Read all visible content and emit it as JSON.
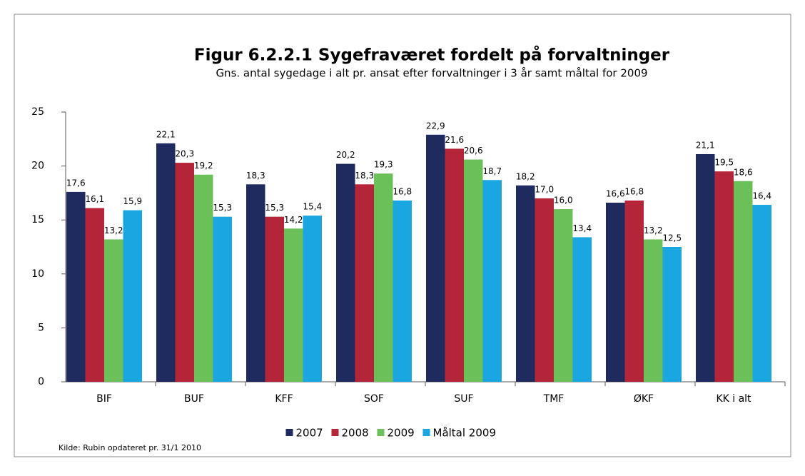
{
  "chart_data": {
    "type": "bar",
    "title": "Figur 6.2.2.1    Sygefraværet fordelt på forvaltninger",
    "subtitle": "Gns. antal sygedage i alt pr. ansat efter forvaltninger i 3 år samt måltal for 2009",
    "source": "Kilde: Rubin opdateret pr. 31/1 2010",
    "categories": [
      "BIF",
      "BUF",
      "KFF",
      "SOF",
      "SUF",
      "TMF",
      "ØKF",
      "KK i alt"
    ],
    "series": [
      {
        "name": "2007",
        "color": "#1f2a5e",
        "values": [
          17.6,
          22.1,
          18.3,
          20.2,
          22.9,
          18.2,
          16.6,
          21.1
        ],
        "value_labels": [
          "17,6",
          "22,1",
          "18,3",
          "20,2",
          "22,9",
          "18,2",
          "16,6",
          "21,1"
        ]
      },
      {
        "name": "2008",
        "color": "#b5253a",
        "values": [
          16.1,
          20.3,
          15.3,
          18.3,
          21.6,
          17.0,
          16.8,
          19.5
        ],
        "value_labels": [
          "16,1",
          "20,3",
          "15,3",
          "18,3",
          "21,6",
          "17,0",
          "16,8",
          "19,5"
        ]
      },
      {
        "name": "2009",
        "color": "#6cc05a",
        "values": [
          13.2,
          19.2,
          14.2,
          19.3,
          20.6,
          16.0,
          13.2,
          18.6
        ],
        "value_labels": [
          "13,2",
          "19,2",
          "14,2",
          "19,3",
          "20,6",
          "16,0",
          "13,2",
          "18,6"
        ]
      },
      {
        "name": "Måltal 2009",
        "color": "#1aa6e0",
        "values": [
          15.9,
          15.3,
          15.4,
          16.8,
          18.7,
          13.4,
          12.5,
          16.4
        ],
        "value_labels": [
          "15,9",
          "15,3",
          "15,4",
          "16,8",
          "18,7",
          "13,4",
          "12,5",
          "16,4"
        ]
      }
    ],
    "ylim": [
      0,
      25
    ],
    "yticks": [
      0,
      5,
      10,
      15,
      20,
      25
    ],
    "grid": false,
    "legend": "bottom"
  }
}
